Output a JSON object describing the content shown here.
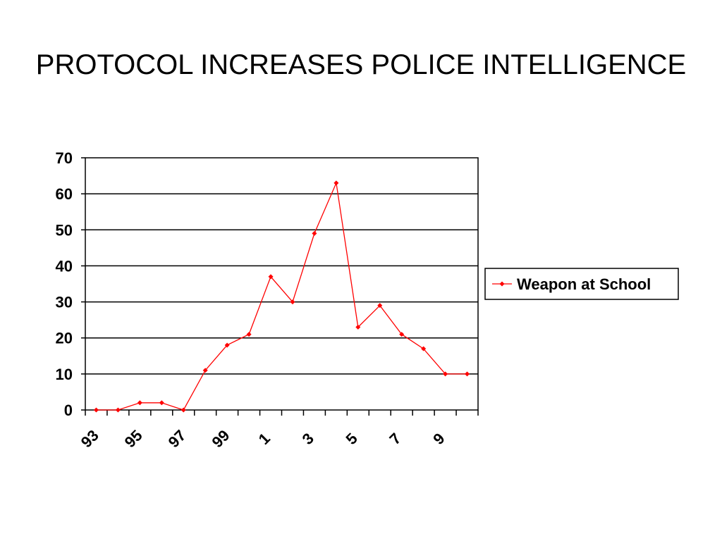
{
  "slide": {
    "title": "PROTOCOL INCREASES POLICE INTELLIGENCE"
  },
  "colors": {
    "series": "#ff0000",
    "axis": "#000000",
    "grid": "#000000",
    "background": "#ffffff"
  },
  "chart_data": {
    "type": "line",
    "title": "",
    "xlabel": "",
    "ylabel": "",
    "ylim": [
      0,
      70
    ],
    "yticks": [
      0,
      10,
      20,
      30,
      40,
      50,
      60,
      70
    ],
    "grid": "horizontal",
    "legend_position": "right",
    "x": [
      "93",
      "94",
      "95",
      "96",
      "97",
      "98",
      "99",
      "0",
      "1",
      "2",
      "3",
      "4",
      "5",
      "6",
      "7",
      "8",
      "9",
      "10"
    ],
    "x_tick_labels": [
      "93",
      "95",
      "97",
      "99",
      "1",
      "3",
      "5",
      "7",
      "9"
    ],
    "series": [
      {
        "name": "Weapon at School",
        "color": "#ff0000",
        "marker": "diamond",
        "values": [
          0,
          0,
          2,
          2,
          0,
          11,
          18,
          21,
          37,
          30,
          49,
          63,
          23,
          29,
          21,
          17,
          10,
          10
        ]
      }
    ]
  }
}
